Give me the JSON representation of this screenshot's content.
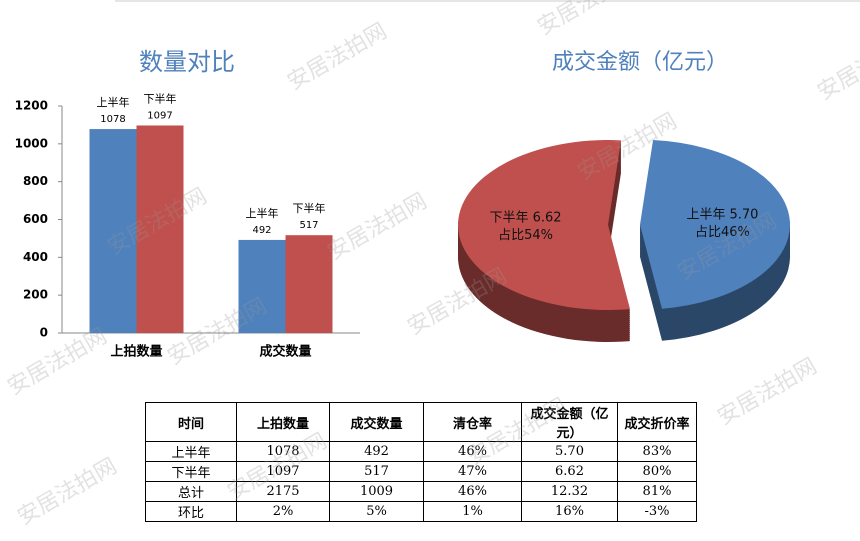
{
  "watermark": "安居法拍网",
  "chart_data": [
    {
      "type": "bar",
      "title": "数量对比",
      "categories": [
        "上拍数量",
        "成交数量"
      ],
      "series": [
        {
          "name": "上半年",
          "color": "#4f81bd",
          "values": [
            1078,
            492
          ]
        },
        {
          "name": "下半年",
          "color": "#c0504d",
          "values": [
            1097,
            517
          ]
        }
      ],
      "ylim": [
        0,
        1200
      ],
      "yticks": [
        0,
        200,
        400,
        600,
        800,
        1000,
        1200
      ]
    },
    {
      "type": "pie",
      "title": "成交金额（亿元）",
      "categories": [
        "上半年",
        "下半年"
      ],
      "values": [
        5.7,
        6.62
      ],
      "value_labels": [
        "5.70",
        "6.62"
      ],
      "percent_labels": [
        "占比46%",
        "占比54%"
      ],
      "colors": [
        "#4f81bd",
        "#c0504d"
      ]
    }
  ],
  "table": {
    "header": [
      "时间",
      "上拍数量",
      "成交数量",
      "清仓率",
      "成交金额（亿元）",
      "成交折价率"
    ],
    "rows": [
      [
        "上半年",
        "1078",
        "492",
        "46%",
        "5.70",
        "83%"
      ],
      [
        "下半年",
        "1097",
        "517",
        "47%",
        "6.62",
        "80%"
      ],
      [
        "总计",
        "2175",
        "1009",
        "46%",
        "12.32",
        "81%"
      ],
      [
        "环比",
        "2%",
        "5%",
        "1%",
        "16%",
        "-3%"
      ]
    ]
  }
}
